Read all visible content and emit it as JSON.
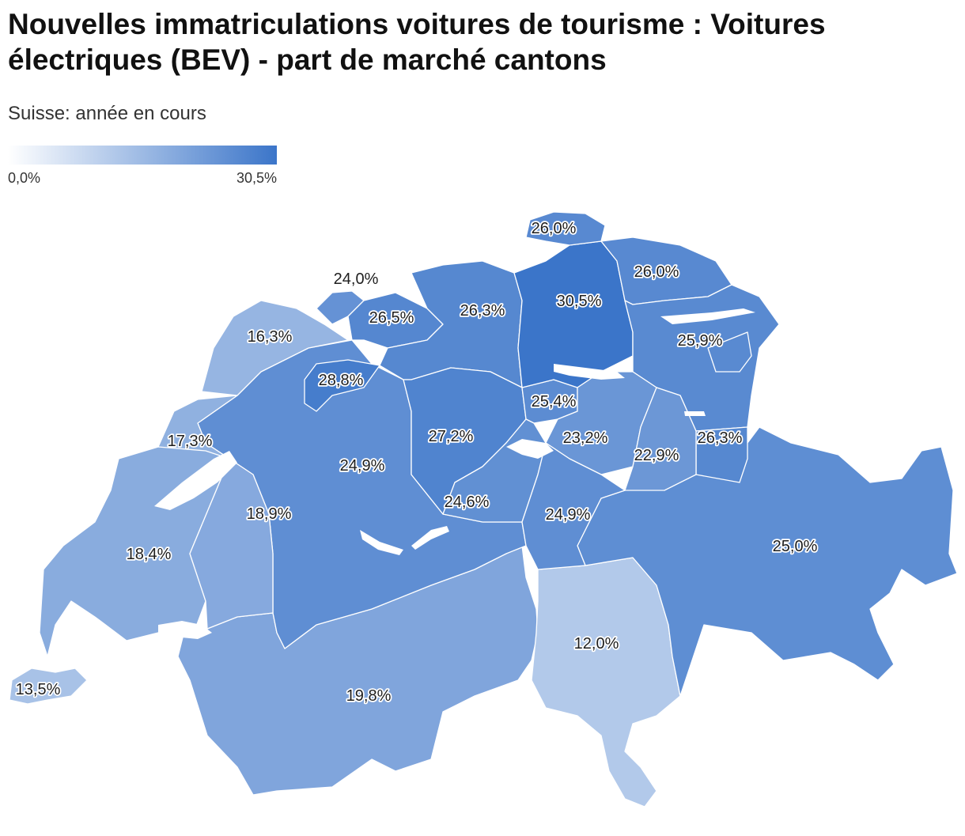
{
  "title": "Nouvelles immatriculations voitures de tourisme : Voitures électriques (BEV) - part de marché cantons",
  "subtitle": "Suisse: année en cours",
  "legend": {
    "min_label": "0,0%",
    "max_label": "30,5%",
    "min_value": 0,
    "max_value": 30.5,
    "color_low": "#ffffff",
    "color_high": "#3b75c9"
  },
  "chart_data": {
    "type": "choropleth",
    "unit": "%",
    "regions": [
      {
        "id": "SH",
        "value": 26.0,
        "label": "26,0%"
      },
      {
        "id": "BS",
        "value": 24.0,
        "label": "24,0%"
      },
      {
        "id": "JU",
        "value": 16.3,
        "label": "16,3%"
      },
      {
        "id": "BL",
        "value": 26.5,
        "label": "26,5%"
      },
      {
        "id": "AG",
        "value": 26.3,
        "label": "26,3%"
      },
      {
        "id": "ZH",
        "value": 30.5,
        "label": "30,5%"
      },
      {
        "id": "TG",
        "value": 26.0,
        "label": "26,0%"
      },
      {
        "id": "SG",
        "value": 25.9,
        "label": "25,9%"
      },
      {
        "id": "SO",
        "value": 28.8,
        "label": "28,8%"
      },
      {
        "id": "ZG",
        "value": 25.4,
        "label": "25,4%"
      },
      {
        "id": "NE",
        "value": 17.3,
        "label": "17,3%"
      },
      {
        "id": "LU",
        "value": 27.2,
        "label": "27,2%"
      },
      {
        "id": "SZ",
        "value": 23.2,
        "label": "23,2%"
      },
      {
        "id": "GL",
        "value": 22.9,
        "label": "22,9%"
      },
      {
        "id": "AR_AI",
        "value": 26.3,
        "label": "26,3%"
      },
      {
        "id": "BE",
        "value": 24.9,
        "label": "24,9%"
      },
      {
        "id": "FR",
        "value": 18.9,
        "label": "18,9%"
      },
      {
        "id": "NW_OW",
        "value": 24.6,
        "label": "24,6%"
      },
      {
        "id": "UR",
        "value": 24.9,
        "label": "24,9%"
      },
      {
        "id": "VD",
        "value": 18.4,
        "label": "18,4%"
      },
      {
        "id": "GR",
        "value": 25.0,
        "label": "25,0%"
      },
      {
        "id": "TI",
        "value": 12.0,
        "label": "12,0%"
      },
      {
        "id": "VS",
        "value": 19.8,
        "label": "19,8%"
      },
      {
        "id": "GE",
        "value": 13.5,
        "label": "13,5%"
      }
    ]
  }
}
